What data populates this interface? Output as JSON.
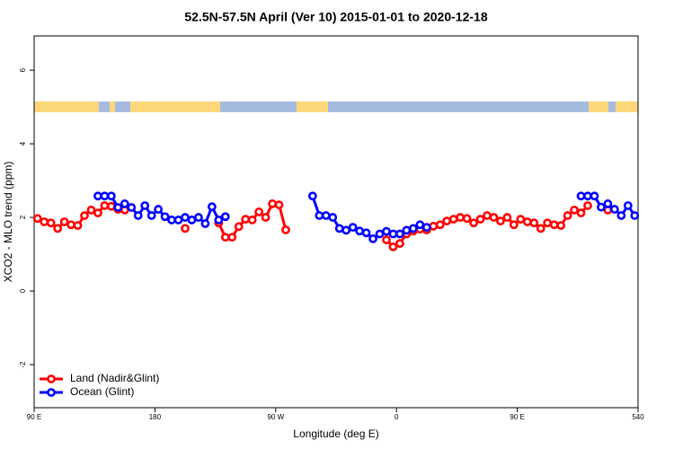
{
  "chart_data": {
    "type": "line",
    "title": "52.5N-57.5N April (Ver 10)   2015-01-01 to 2020-12-18",
    "xlabel": "Longitude (deg E)",
    "ylabel": "XCO2 - MLO trend (ppm)",
    "x": [
      92.5,
      97.5,
      102.5,
      107.5,
      112.5,
      117.5,
      122.5,
      127.5,
      132.5,
      137.5,
      142.5,
      147.5,
      152.5,
      157.5,
      162.5,
      167.5,
      172.5,
      177.5,
      182.5,
      187.5,
      192.5,
      197.5,
      202.5,
      207.5,
      212.5,
      217.5,
      222.5,
      227.5,
      232.5,
      237.5,
      242.5,
      247.5,
      252.5,
      257.5,
      262.5,
      267.5,
      272.5,
      277.5,
      282.5,
      287.5,
      292.5,
      297.5,
      302.5,
      307.5,
      312.5,
      317.5,
      322.5,
      327.5,
      332.5,
      337.5,
      342.5,
      347.5,
      352.5,
      357.5,
      362.5,
      367.5,
      372.5,
      377.5,
      382.5,
      387.5,
      392.5,
      397.5,
      402.5,
      407.5,
      412.5,
      417.5,
      422.5,
      427.5,
      432.5,
      437.5,
      442.5,
      447.5,
      452.5,
      457.5,
      462.5,
      467.5,
      472.5,
      477.5,
      482.5,
      487.5,
      492.5,
      497.5,
      502.5,
      507.5,
      512.5,
      517.5,
      522.5,
      527.5,
      532.5,
      537.5
    ],
    "series": [
      {
        "name": "Land (Nadir&Glint)",
        "color": "#ff0000",
        "values": [
          1.97,
          1.88,
          1.85,
          1.7,
          1.88,
          1.8,
          1.78,
          2.05,
          2.2,
          2.12,
          2.32,
          2.3,
          2.22,
          2.2,
          null,
          null,
          null,
          null,
          null,
          null,
          null,
          null,
          1.7,
          null,
          null,
          null,
          null,
          1.85,
          1.46,
          1.46,
          1.75,
          1.95,
          1.93,
          2.15,
          2.0,
          2.37,
          2.34,
          1.66,
          null,
          null,
          null,
          null,
          null,
          null,
          null,
          null,
          null,
          null,
          null,
          null,
          null,
          null,
          1.39,
          1.2,
          1.29,
          1.55,
          1.63,
          1.68,
          1.66,
          1.76,
          1.8,
          1.9,
          1.95,
          2.0,
          1.97,
          1.85,
          1.95,
          2.05,
          2.0,
          1.9,
          2.0,
          1.8,
          1.95,
          1.88,
          1.85,
          1.7,
          1.85,
          1.8,
          1.78,
          2.05,
          2.2,
          2.12,
          2.32,
          null,
          null,
          2.2,
          null,
          null,
          null,
          null
        ]
      },
      {
        "name": "Ocean (Glint)",
        "color": "#0000ff",
        "values": [
          null,
          null,
          null,
          null,
          null,
          null,
          null,
          null,
          null,
          2.58,
          2.58,
          2.58,
          2.27,
          2.37,
          2.27,
          2.05,
          2.32,
          2.05,
          2.22,
          2.02,
          1.93,
          1.93,
          2.0,
          1.93,
          2.0,
          1.83,
          2.29,
          1.93,
          2.02,
          null,
          null,
          null,
          null,
          null,
          null,
          null,
          null,
          null,
          null,
          null,
          null,
          2.58,
          2.05,
          2.05,
          2.0,
          1.7,
          1.65,
          1.73,
          1.63,
          1.58,
          1.42,
          1.55,
          1.62,
          1.55,
          1.55,
          1.65,
          1.7,
          1.8,
          1.73,
          null,
          null,
          null,
          null,
          null,
          null,
          null,
          null,
          null,
          null,
          null,
          null,
          null,
          null,
          null,
          null,
          null,
          null,
          null,
          null,
          null,
          null,
          2.58,
          2.58,
          2.58,
          2.28,
          2.37,
          2.22,
          2.05,
          2.32,
          2.05
        ]
      }
    ],
    "xlim": [
      90,
      540
    ],
    "xticks": [
      {
        "value": 90,
        "label": "90 E"
      },
      180,
      {
        "value": 270,
        "label": "90 W"
      },
      {
        "value": 360,
        "label": "0"
      },
      {
        "value": 450,
        "label": "90 E"
      },
      540
    ],
    "ylim": [
      -3.17,
      6.93
    ],
    "yticks": [
      -2,
      0,
      2,
      4,
      6
    ],
    "legend": "bottom-left"
  }
}
